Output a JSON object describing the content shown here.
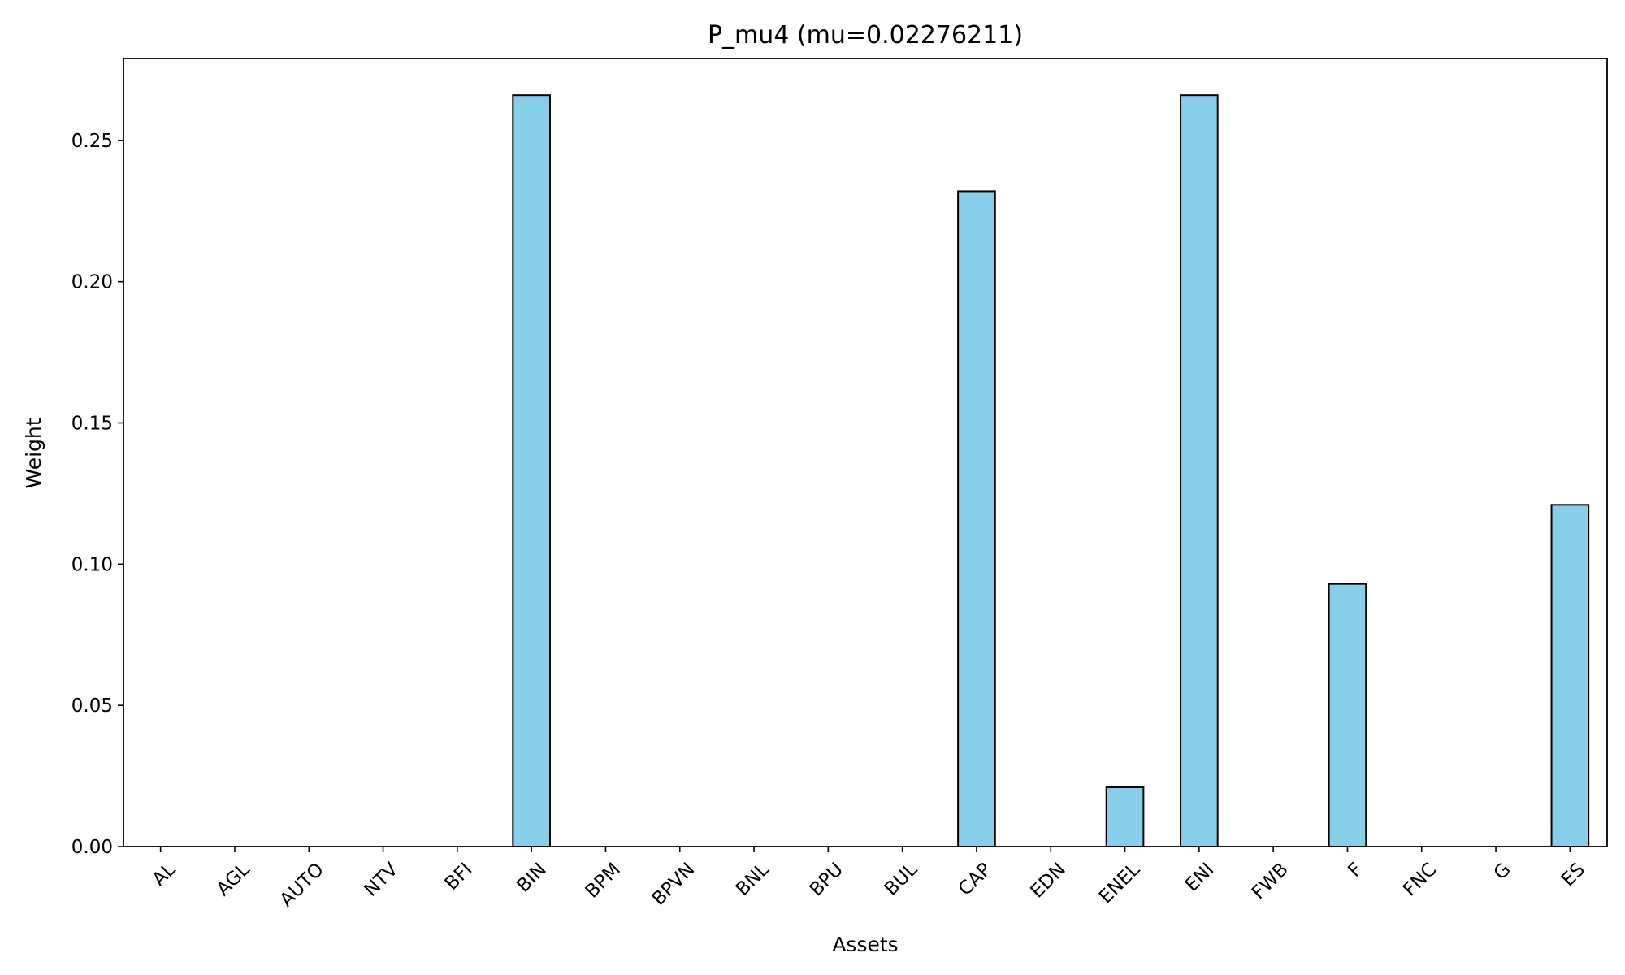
{
  "chart_data": {
    "type": "bar",
    "title": "P_mu4 (mu=0.02276211)",
    "xlabel": "Assets",
    "ylabel": "Weight",
    "categories": [
      "AL",
      "AGL",
      "AUTO",
      "NTV",
      "BFI",
      "BIN",
      "BPM",
      "BPVN",
      "BNL",
      "BPU",
      "BUL",
      "CAP",
      "EDN",
      "ENEL",
      "ENI",
      "FWB",
      "F",
      "FNC",
      "G",
      "ES"
    ],
    "values": [
      0,
      0,
      0,
      0,
      0,
      0.266,
      0,
      0,
      0,
      0,
      0,
      0.232,
      0,
      0.021,
      0.266,
      0,
      0.093,
      0,
      0,
      0.121
    ],
    "ylim": [
      0,
      0.279
    ],
    "yticks": [
      "0.00",
      "0.05",
      "0.10",
      "0.15",
      "0.20",
      "0.25"
    ],
    "grid": false,
    "bar_color": "#87CEEB",
    "edge_color": "#000000"
  }
}
